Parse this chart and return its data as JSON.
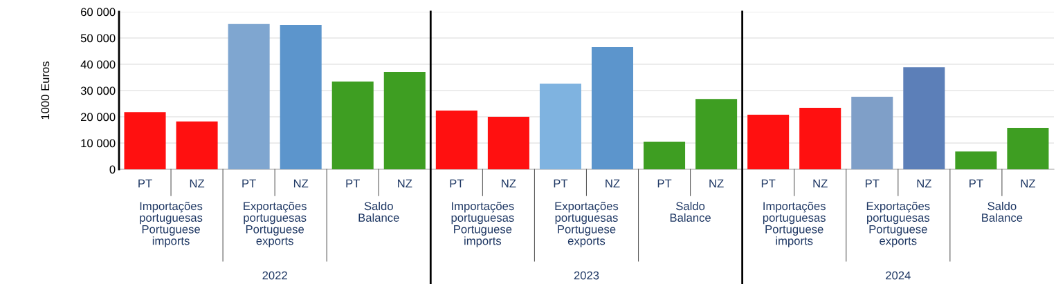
{
  "chart_data": {
    "type": "bar",
    "ylabel": "1000 Euros",
    "categories": [
      "PT",
      "NZ",
      "PT",
      "NZ",
      "PT",
      "NZ",
      "PT",
      "NZ",
      "PT",
      "NZ",
      "PT",
      "NZ",
      "PT",
      "NZ",
      "PT",
      "NZ",
      "PT",
      "NZ"
    ],
    "values": [
      21800,
      18200,
      55300,
      55000,
      33400,
      37100,
      22400,
      20000,
      32600,
      46600,
      10500,
      26800,
      20800,
      23400,
      27600,
      38900,
      6800,
      15800
    ],
    "colors": [
      "#ff1010",
      "#ff1010",
      "#7fa6d0",
      "#5c95cc",
      "#3e9e22",
      "#3e9e22",
      "#ff1010",
      "#ff1010",
      "#7fb3e0",
      "#5c95cc",
      "#3e9e22",
      "#3e9e22",
      "#ff1010",
      "#ff1010",
      "#7f9fc8",
      "#5c7fb8",
      "#3e9e22",
      "#3e9e22"
    ],
    "ylim": [
      0,
      60000
    ],
    "yticks": [
      0,
      {
        "value": 10000,
        "label": "10 000"
      },
      {
        "value": 20000,
        "label": "20 000"
      },
      {
        "value": 30000,
        "label": "30 000"
      },
      {
        "value": 40000,
        "label": "40 000"
      },
      {
        "value": 50000,
        "label": "50 000"
      },
      {
        "value": 60000,
        "label": "60 000"
      }
    ],
    "grid": "y",
    "annotations": [
      "Importações\nportuguesas\nPortuguese\nimports",
      "Exportações\nportuguesas\nPortuguese\nexports",
      "Saldo\nBalance",
      "Importações\nportuguesas\nPortuguese\nimports",
      "Exportações\nportuguesas\nPortuguese\nexports",
      "Saldo\nBalance",
      "Importações\nportuguesas\nPortuguese\nimports",
      "Exportações\nportuguesas\nPortuguese\nexports",
      "Saldo\nBalance",
      "2022",
      "2023",
      "2024"
    ]
  }
}
